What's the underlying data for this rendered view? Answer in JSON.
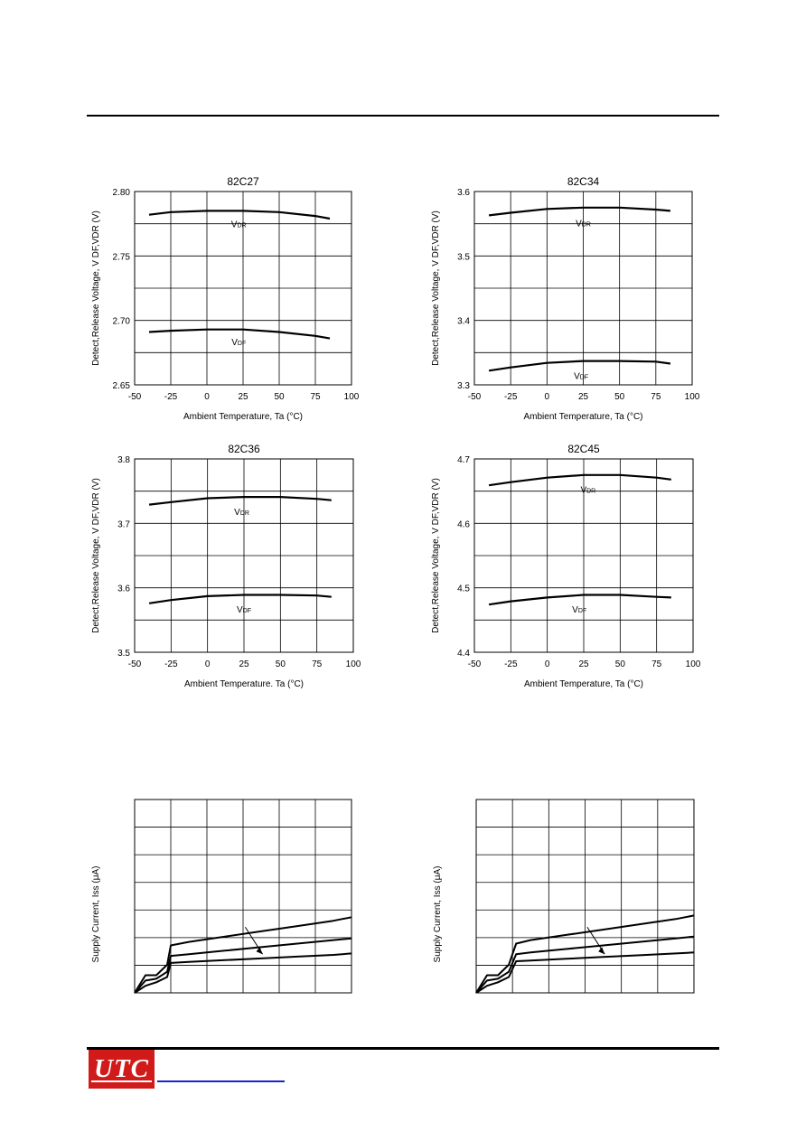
{
  "logo": {
    "text": "UTC"
  },
  "colors": {
    "axis": "#000000",
    "curve": "#000000",
    "logo_bg": "#d11a1a",
    "link": "#1a22c8"
  },
  "chart_data": [
    {
      "type": "line",
      "title": "82C27",
      "xlabel": "Ambient Temperature, Ta (°C)",
      "ylabel": "Detect,Release Voltage, V DF,VDR (V)",
      "xlim": [
        -50,
        100
      ],
      "ylim": [
        2.65,
        2.8
      ],
      "xticks": [
        "-50",
        "-25",
        "0",
        "25",
        "50",
        "75",
        "100"
      ],
      "yticks": [
        "2.65",
        "2.70",
        "2.75",
        "2.80"
      ],
      "grid": true,
      "series": [
        {
          "name": "VDR",
          "x": [
            -40,
            -25,
            0,
            25,
            50,
            75,
            85
          ],
          "y": [
            2.782,
            2.784,
            2.785,
            2.785,
            2.784,
            2.781,
            2.779
          ]
        },
        {
          "name": "VDF",
          "x": [
            -40,
            -25,
            0,
            25,
            50,
            75,
            85
          ],
          "y": [
            2.691,
            2.692,
            2.693,
            2.693,
            2.691,
            2.688,
            2.686
          ]
        }
      ]
    },
    {
      "type": "line",
      "title": "82C34",
      "xlabel": "Ambient Temperature, Ta (°C)",
      "ylabel": "Detect,Release Voltage, V DF,VDR (V)",
      "xlim": [
        -50,
        100
      ],
      "ylim": [
        3.3,
        3.6
      ],
      "xticks": [
        "-50",
        "-25",
        "0",
        "25",
        "50",
        "75",
        "100"
      ],
      "yticks": [
        "3.3",
        "3.4",
        "3.5",
        "3.6"
      ],
      "grid": true,
      "series": [
        {
          "name": "VDR",
          "x": [
            -40,
            -25,
            0,
            25,
            50,
            75,
            85
          ],
          "y": [
            3.563,
            3.567,
            3.573,
            3.575,
            3.575,
            3.572,
            3.57
          ]
        },
        {
          "name": "VDF",
          "x": [
            -40,
            -25,
            0,
            25,
            50,
            75,
            85
          ],
          "y": [
            3.322,
            3.327,
            3.334,
            3.337,
            3.337,
            3.336,
            3.333
          ]
        }
      ]
    },
    {
      "type": "line",
      "title": "82C36",
      "xlabel": "Ambient Temperature. Ta (°C)",
      "ylabel": "Detect,Release Voltage, V DF,VDR (V)",
      "xlim": [
        -50,
        100
      ],
      "ylim": [
        3.5,
        3.8
      ],
      "xticks": [
        "-50",
        "-25",
        "0",
        "25",
        "50",
        "75",
        "100"
      ],
      "yticks": [
        "3.5",
        "3.6",
        "3.7",
        "3.8"
      ],
      "grid": true,
      "series": [
        {
          "name": "VDR",
          "x": [
            -40,
            -25,
            0,
            25,
            50,
            75,
            85
          ],
          "y": [
            3.729,
            3.733,
            3.739,
            3.741,
            3.741,
            3.738,
            3.736
          ]
        },
        {
          "name": "VDF",
          "x": [
            -40,
            -25,
            0,
            25,
            50,
            75,
            85
          ],
          "y": [
            3.576,
            3.581,
            3.587,
            3.589,
            3.589,
            3.588,
            3.586
          ]
        }
      ]
    },
    {
      "type": "line",
      "title": "82C45",
      "xlabel": "Ambient Temperature, Ta (°C)",
      "ylabel": "Detect,Release Voltage, V DF,VDR (V)",
      "xlim": [
        -50,
        100
      ],
      "ylim": [
        4.4,
        4.7
      ],
      "xticks": [
        "-50",
        "-25",
        "0",
        "25",
        "50",
        "75",
        "100"
      ],
      "yticks": [
        "4.4",
        "4.5",
        "4.6",
        "4.7"
      ],
      "grid": true,
      "series": [
        {
          "name": "VDR",
          "x": [
            -40,
            -25,
            0,
            25,
            50,
            75,
            85
          ],
          "y": [
            4.659,
            4.664,
            4.671,
            4.675,
            4.675,
            4.671,
            4.668
          ]
        },
        {
          "name": "VDF",
          "x": [
            -40,
            -25,
            0,
            25,
            50,
            75,
            85
          ],
          "y": [
            4.474,
            4.479,
            4.485,
            4.489,
            4.489,
            4.486,
            4.485
          ]
        }
      ]
    },
    {
      "type": "line",
      "title": "",
      "xlabel": "",
      "ylabel": "Supply Current, Iss (μA)",
      "grid": true,
      "series": [
        {
          "x": [
            0,
            0.3,
            0.6,
            0.9,
            1.0,
            1.5,
            2.5,
            3.5,
            4.5,
            5.5,
            6.0
          ],
          "y": [
            0,
            0.5,
            0.5,
            0.8,
            1.35,
            1.45,
            1.6,
            1.75,
            1.9,
            2.05,
            2.15
          ]
        },
        {
          "x": [
            0,
            0.3,
            0.6,
            0.9,
            1.0,
            1.5,
            2.5,
            3.5,
            4.5,
            5.5,
            6.0
          ],
          "y": [
            0,
            0.35,
            0.4,
            0.6,
            1.05,
            1.1,
            1.2,
            1.3,
            1.4,
            1.5,
            1.55
          ]
        },
        {
          "x": [
            0,
            0.3,
            0.6,
            0.9,
            1.0,
            1.5,
            2.5,
            3.5,
            4.5,
            5.5,
            6.0
          ],
          "y": [
            0,
            0.2,
            0.3,
            0.45,
            0.85,
            0.88,
            0.93,
            0.98,
            1.03,
            1.08,
            1.12
          ]
        }
      ]
    },
    {
      "type": "line",
      "title": "",
      "xlabel": "",
      "ylabel": "Supply Current, Iss (μA)",
      "grid": true,
      "series": [
        {
          "x": [
            0,
            0.3,
            0.6,
            0.9,
            1.1,
            1.5,
            2.5,
            3.5,
            4.5,
            5.5,
            6.0
          ],
          "y": [
            0,
            0.5,
            0.5,
            0.8,
            1.4,
            1.5,
            1.65,
            1.8,
            1.95,
            2.1,
            2.2
          ]
        },
        {
          "x": [
            0,
            0.3,
            0.6,
            0.9,
            1.1,
            1.5,
            2.5,
            3.5,
            4.5,
            5.5,
            6.0
          ],
          "y": [
            0,
            0.35,
            0.4,
            0.6,
            1.1,
            1.15,
            1.25,
            1.35,
            1.45,
            1.55,
            1.6
          ]
        },
        {
          "x": [
            0,
            0.3,
            0.6,
            0.9,
            1.1,
            1.5,
            2.5,
            3.5,
            4.5,
            5.5,
            6.0
          ],
          "y": [
            0,
            0.2,
            0.3,
            0.45,
            0.9,
            0.92,
            0.97,
            1.02,
            1.07,
            1.12,
            1.15
          ]
        }
      ]
    }
  ]
}
